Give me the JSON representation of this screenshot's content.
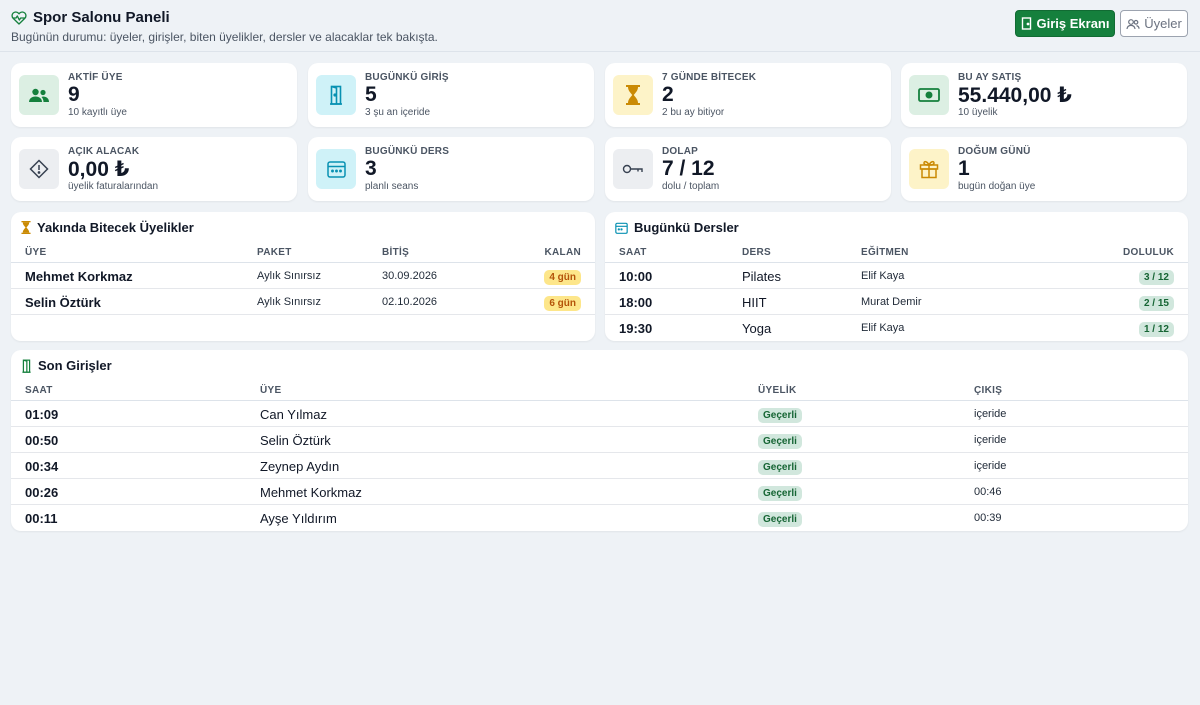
{
  "header": {
    "title": "Spor Salonu Paneli",
    "subtitle": "Bugünün durumu: üyeler, girişler, biten üyelikler, dersler ve alacaklar tek bakışta.",
    "primary_button": "Giriş Ekranı",
    "secondary_button": "Üyeler"
  },
  "stats": [
    {
      "label": "AKTİF ÜYE",
      "value": "9",
      "sub": "10 kayıtlı üye",
      "icon": "users-icon",
      "color": "#15803d"
    },
    {
      "label": "BUGÜNKÜ GİRİŞ",
      "value": "5",
      "sub": "3 şu an içeride",
      "icon": "door-icon",
      "color": "#0891b2"
    },
    {
      "label": "7 GÜNDE BİTECEK",
      "value": "2",
      "sub": "2 bu ay bitiyor",
      "icon": "hourglass-icon",
      "color": "#ca8a04"
    },
    {
      "label": "BU AY SATIŞ",
      "value": "55.440,00 ₺",
      "sub": "10 üyelik",
      "icon": "cash-icon",
      "color": "#15803d"
    },
    {
      "label": "AÇIK ALACAK",
      "value": "0,00 ₺",
      "sub": "üyelik faturalarından",
      "icon": "warning-icon",
      "color": "#374151"
    },
    {
      "label": "BUGÜNKÜ DERS",
      "value": "3",
      "sub": "planlı seans",
      "icon": "calendar-icon",
      "color": "#0891b2"
    },
    {
      "label": "DOLAP",
      "value": "7 / 12",
      "sub": "dolu / toplam",
      "icon": "key-icon",
      "color": "#374151"
    },
    {
      "label": "DOĞUM GÜNÜ",
      "value": "1",
      "sub": "bugün doğan üye",
      "icon": "gift-icon",
      "color": "#ca8a04"
    }
  ],
  "expiring": {
    "title": "Yakında Bitecek Üyelikler",
    "columns": [
      "ÜYE",
      "PAKET",
      "BİTİŞ",
      "KALAN"
    ],
    "rows": [
      {
        "member": "Mehmet Korkmaz",
        "package": "Aylık Sınırsız",
        "end": "30.09.2026",
        "left": "4 gün"
      },
      {
        "member": "Selin Öztürk",
        "package": "Aylık Sınırsız",
        "end": "02.10.2026",
        "left": "6 gün"
      }
    ]
  },
  "classes": {
    "title": "Bugünkü Dersler",
    "columns": [
      "SAAT",
      "DERS",
      "EĞİTMEN",
      "DOLULUK"
    ],
    "rows": [
      {
        "time": "10:00",
        "name": "Pilates",
        "trainer": "Elif Kaya",
        "fill": "3 / 12"
      },
      {
        "time": "18:00",
        "name": "HIIT",
        "trainer": "Murat Demir",
        "fill": "2 / 15"
      },
      {
        "time": "19:30",
        "name": "Yoga",
        "trainer": "Elif Kaya",
        "fill": "1 / 12"
      }
    ]
  },
  "entries": {
    "title": "Son Girişler",
    "columns": [
      "SAAT",
      "ÜYE",
      "ÜYELİK",
      "ÇIKIŞ"
    ],
    "rows": [
      {
        "time": "01:09",
        "member": "Can Yılmaz",
        "status": "Geçerli",
        "exit": "içeride"
      },
      {
        "time": "00:50",
        "member": "Selin Öztürk",
        "status": "Geçerli",
        "exit": "içeride"
      },
      {
        "time": "00:34",
        "member": "Zeynep Aydın",
        "status": "Geçerli",
        "exit": "içeride"
      },
      {
        "time": "00:26",
        "member": "Mehmet Korkmaz",
        "status": "Geçerli",
        "exit": "00:46"
      },
      {
        "time": "00:11",
        "member": "Ayşe Yıldırım",
        "status": "Geçerli",
        "exit": "00:39"
      }
    ]
  }
}
